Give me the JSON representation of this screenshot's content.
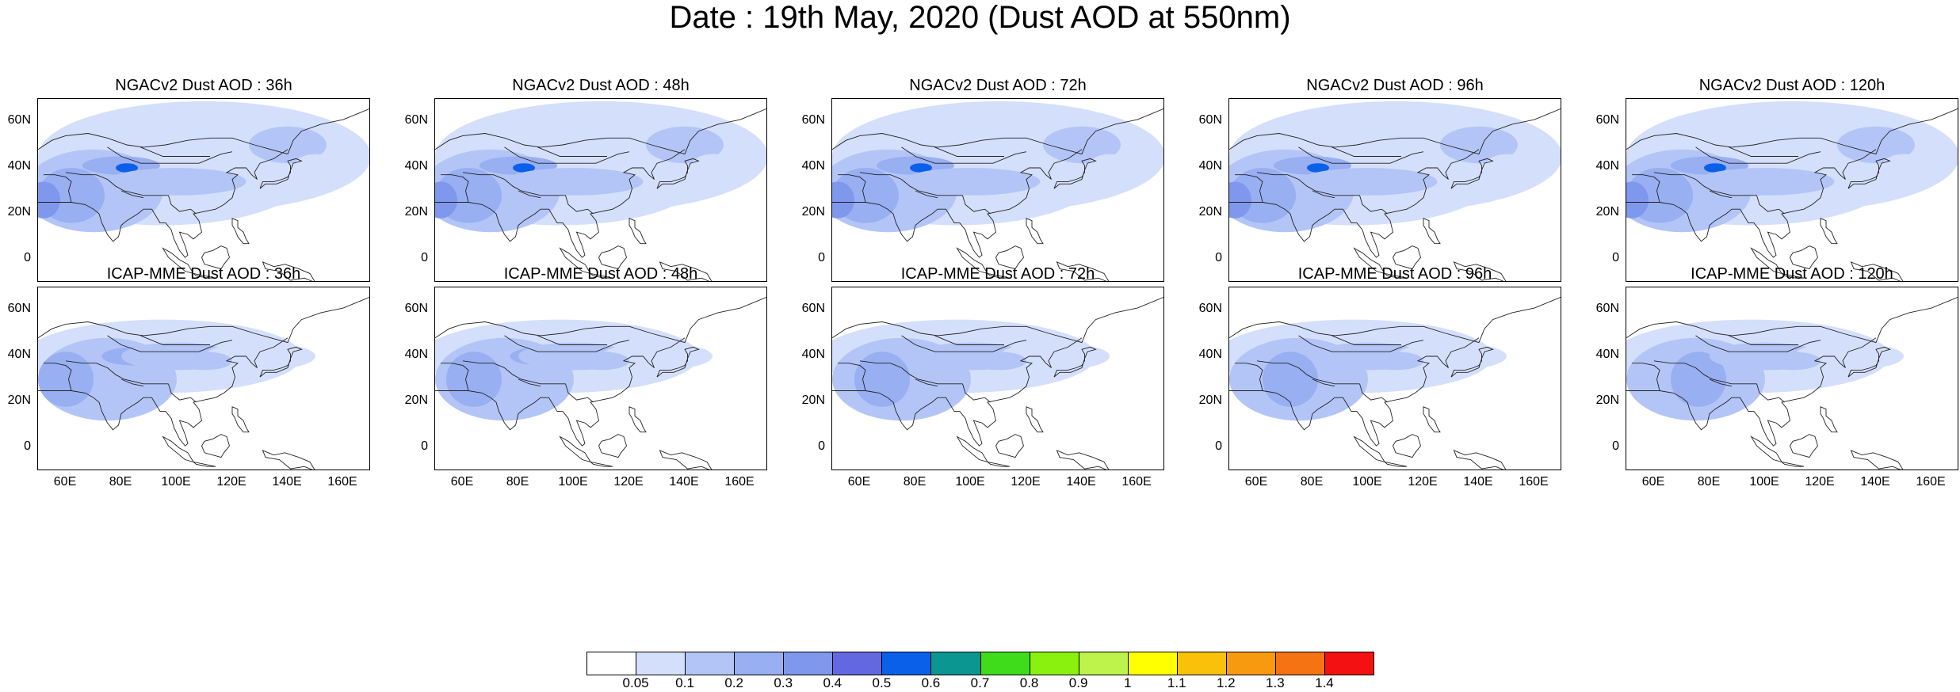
{
  "title": "Date : 19th May, 2020 (Dust AOD at 550nm)",
  "map": {
    "lon_ticks": [
      "60E",
      "80E",
      "100E",
      "120E",
      "140E",
      "160E"
    ],
    "lat_ticks": [
      "60N",
      "40N",
      "20N",
      "0"
    ],
    "lon_range": [
      50,
      170
    ],
    "lat_range": [
      -10,
      70
    ]
  },
  "rows": [
    {
      "model": "NGACv2",
      "panels": [
        {
          "title": "NGACv2 Dust AOD : 36h",
          "forecast_hour": 36
        },
        {
          "title": "NGACv2 Dust AOD : 48h",
          "forecast_hour": 48
        },
        {
          "title": "NGACv2 Dust AOD : 72h",
          "forecast_hour": 72
        },
        {
          "title": "NGACv2 Dust AOD : 96h",
          "forecast_hour": 96
        },
        {
          "title": "NGACv2 Dust AOD : 120h",
          "forecast_hour": 120
        }
      ]
    },
    {
      "model": "ICAP-MME",
      "panels": [
        {
          "title": "ICAP-MME Dust AOD : 36h",
          "forecast_hour": 36
        },
        {
          "title": "ICAP-MME Dust AOD : 48h",
          "forecast_hour": 48
        },
        {
          "title": "ICAP-MME Dust AOD : 72h",
          "forecast_hour": 72
        },
        {
          "title": "ICAP-MME Dust AOD : 96h",
          "forecast_hour": 96
        },
        {
          "title": "ICAP-MME Dust AOD : 120h",
          "forecast_hour": 120
        }
      ]
    }
  ],
  "colorbar": {
    "labels": [
      "0.05",
      "0.1",
      "0.2",
      "0.3",
      "0.4",
      "0.5",
      "0.6",
      "0.7",
      "0.8",
      "0.9",
      "1",
      "1.1",
      "1.2",
      "1.3",
      "1.4"
    ],
    "colors": [
      "#ffffff",
      "#d4dffb",
      "#b3c5f6",
      "#98aff1",
      "#7f97ec",
      "#6468e0",
      "#0a60e8",
      "#0b9691",
      "#3fdc1c",
      "#8af10f",
      "#bdf34b",
      "#ffff00",
      "#f9c10a",
      "#f89a10",
      "#f57312",
      "#f41111"
    ]
  }
}
